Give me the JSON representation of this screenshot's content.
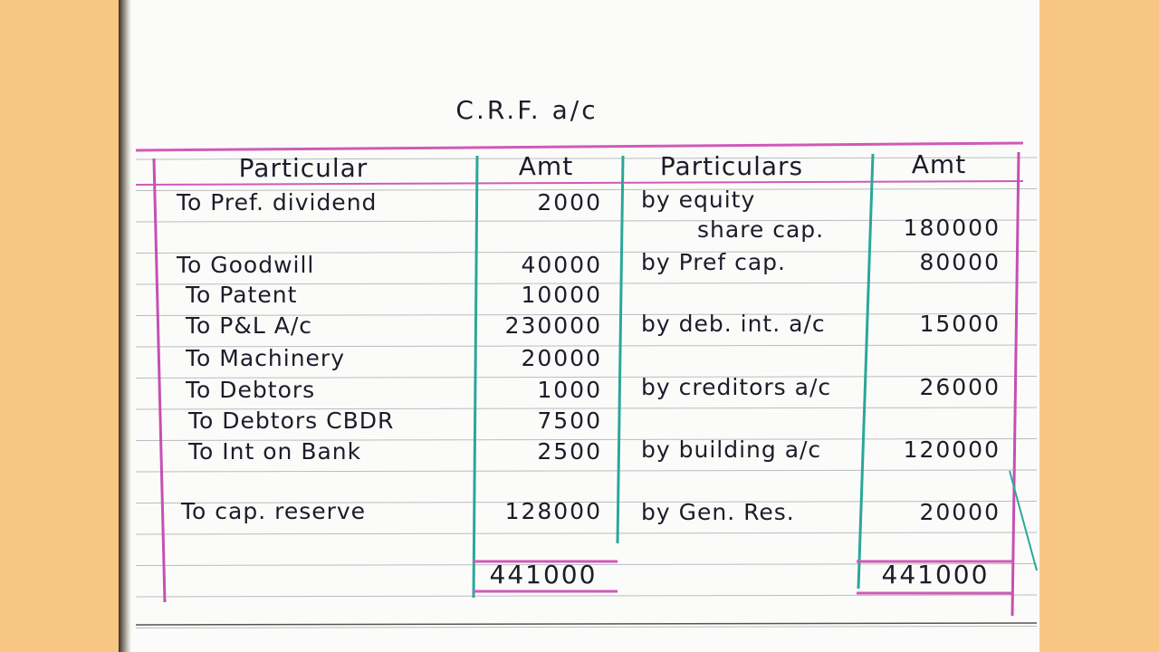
{
  "title": "C.R.F. a/c",
  "headers": [
    "Particular",
    "Amt",
    "Particulars",
    "Amt"
  ],
  "debit": [
    {
      "particular": [
        "To Pref. dividend"
      ],
      "amount": 2000
    },
    {
      "particular": [
        "To Goodwill"
      ],
      "amount": 40000
    },
    {
      "particular": [
        "To Patent"
      ],
      "amount": 10000
    },
    {
      "particular": [
        "To P&L A/c"
      ],
      "amount": 230000
    },
    {
      "particular": [
        "To Machinery"
      ],
      "amount": 20000
    },
    {
      "particular": [
        "To Debtors"
      ],
      "amount": 1000
    },
    {
      "particular": [
        "To Debtors CBDR"
      ],
      "amount": 7500
    },
    {
      "particular": [
        "To Int on Bank"
      ],
      "amount": 2500
    },
    {
      "particular": [
        "To cap. reserve"
      ],
      "amount": 128000
    }
  ],
  "credit": [
    {
      "particular": [
        "by equity",
        "share cap."
      ],
      "amount": 180000
    },
    {
      "particular": [
        "by Pref cap."
      ],
      "amount": 80000
    },
    {
      "particular": [
        "by deb. int. a/c"
      ],
      "amount": 15000
    },
    {
      "particular": [
        "by creditors a/c"
      ],
      "amount": 26000
    },
    {
      "particular": [
        "by building a/c"
      ],
      "amount": 120000
    },
    {
      "particular": [
        "by Gen. Res."
      ],
      "amount": 20000
    }
  ],
  "totals": [
    441000,
    441000
  ]
}
